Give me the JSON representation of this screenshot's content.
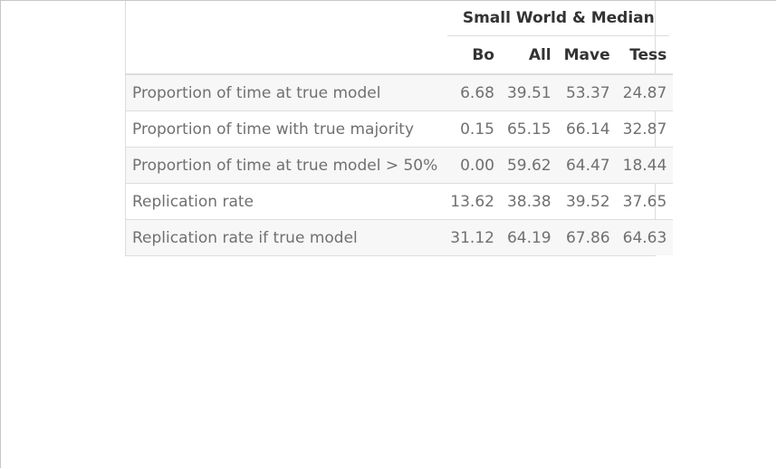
{
  "table": {
    "spanner_label": "Small World & Median",
    "columns": [
      "",
      "Bo",
      "All",
      "Mave",
      "Tess"
    ],
    "rows": [
      {
        "label": "Proportion of time at true model",
        "values": [
          "6.68",
          "39.51",
          "53.37",
          "24.87"
        ]
      },
      {
        "label": "Proportion of time with true majority",
        "values": [
          "0.15",
          "65.15",
          "66.14",
          "32.87"
        ]
      },
      {
        "label": "Proportion of time at true model > 50%",
        "values": [
          "0.00",
          "59.62",
          "64.47",
          "18.44"
        ]
      },
      {
        "label": "Replication rate",
        "values": [
          "13.62",
          "38.38",
          "39.52",
          "37.65"
        ]
      },
      {
        "label": "Replication rate if true model",
        "values": [
          "31.12",
          "64.19",
          "67.86",
          "64.63"
        ]
      }
    ]
  },
  "colors": {
    "header_text": "#333333",
    "body_text": "#707070",
    "stripe": "#f7f7f7",
    "rule": "#dddddd"
  }
}
